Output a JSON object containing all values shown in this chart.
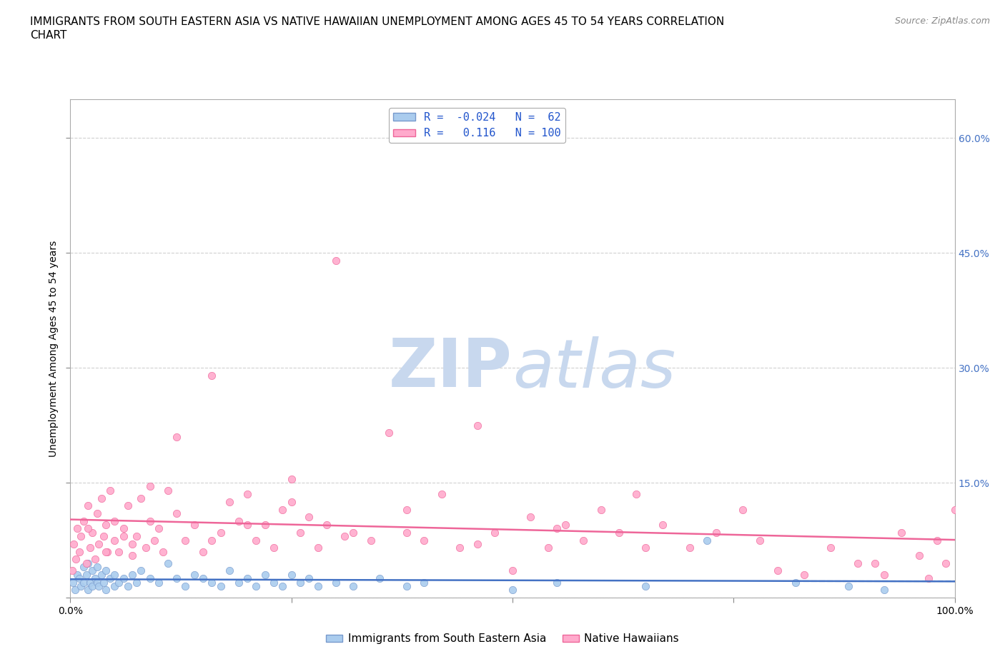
{
  "title_line1": "IMMIGRANTS FROM SOUTH EASTERN ASIA VS NATIVE HAWAIIAN UNEMPLOYMENT AMONG AGES 45 TO 54 YEARS CORRELATION",
  "title_line2": "CHART",
  "source_text": "Source: ZipAtlas.com",
  "ylabel": "Unemployment Among Ages 45 to 54 years",
  "xlim": [
    0.0,
    100.0
  ],
  "ylim": [
    0.0,
    65.0
  ],
  "background_color": "#ffffff",
  "grid_color": "#d0d0d0",
  "watermark_zip": "ZIP",
  "watermark_atlas": "atlas",
  "watermark_color_zip": "#c8d8ee",
  "watermark_color_atlas": "#c8d8ee",
  "right_ytick_color": "#4472c4",
  "series": [
    {
      "name": "Immigrants from South Eastern Asia",
      "color": "#aaccee",
      "edge_color": "#7799cc",
      "R": -0.024,
      "N": 62,
      "line_color": "#4472c4",
      "line_dash": false,
      "x": [
        0.3,
        0.5,
        0.8,
        1.0,
        1.2,
        1.5,
        1.5,
        1.8,
        2.0,
        2.0,
        2.2,
        2.5,
        2.5,
        2.8,
        3.0,
        3.0,
        3.2,
        3.5,
        3.8,
        4.0,
        4.0,
        4.5,
        5.0,
        5.0,
        5.5,
        6.0,
        6.5,
        7.0,
        7.5,
        8.0,
        9.0,
        10.0,
        11.0,
        12.0,
        13.0,
        14.0,
        15.0,
        16.0,
        17.0,
        18.0,
        19.0,
        20.0,
        21.0,
        22.0,
        23.0,
        24.0,
        25.0,
        26.0,
        27.0,
        28.0,
        30.0,
        32.0,
        35.0,
        38.0,
        40.0,
        50.0,
        55.0,
        65.0,
        72.0,
        82.0,
        88.0,
        92.0
      ],
      "y": [
        2.0,
        1.0,
        3.0,
        2.5,
        1.5,
        4.0,
        2.0,
        3.0,
        1.0,
        4.5,
        2.0,
        3.5,
        1.5,
        2.5,
        2.0,
        4.0,
        1.5,
        3.0,
        2.0,
        1.0,
        3.5,
        2.5,
        1.5,
        3.0,
        2.0,
        2.5,
        1.5,
        3.0,
        2.0,
        3.5,
        2.5,
        2.0,
        4.5,
        2.5,
        1.5,
        3.0,
        2.5,
        2.0,
        1.5,
        3.5,
        2.0,
        2.5,
        1.5,
        3.0,
        2.0,
        1.5,
        3.0,
        2.0,
        2.5,
        1.5,
        2.0,
        1.5,
        2.5,
        1.5,
        2.0,
        1.0,
        2.0,
        1.5,
        7.5,
        2.0,
        1.5,
        1.0
      ]
    },
    {
      "name": "Native Hawaiians",
      "color": "#ffaacc",
      "edge_color": "#ee6699",
      "R": 0.116,
      "N": 100,
      "line_color": "#ee6699",
      "line_dash": false,
      "x": [
        0.2,
        0.4,
        0.6,
        0.8,
        1.0,
        1.2,
        1.5,
        1.8,
        2.0,
        2.2,
        2.5,
        2.8,
        3.0,
        3.2,
        3.5,
        3.8,
        4.0,
        4.2,
        4.5,
        5.0,
        5.0,
        5.5,
        6.0,
        6.5,
        7.0,
        7.0,
        7.5,
        8.0,
        8.5,
        9.0,
        9.5,
        10.0,
        10.5,
        11.0,
        12.0,
        13.0,
        14.0,
        15.0,
        16.0,
        17.0,
        18.0,
        19.0,
        20.0,
        21.0,
        22.0,
        23.0,
        24.0,
        25.0,
        26.0,
        27.0,
        28.0,
        29.0,
        30.0,
        32.0,
        34.0,
        36.0,
        38.0,
        40.0,
        42.0,
        44.0,
        46.0,
        48.0,
        50.0,
        52.0,
        54.0,
        56.0,
        58.0,
        60.0,
        62.0,
        64.0,
        67.0,
        70.0,
        73.0,
        76.0,
        80.0,
        83.0,
        86.0,
        89.0,
        92.0,
        94.0,
        96.0,
        97.0,
        98.0,
        99.0,
        100.0,
        2.0,
        4.0,
        6.0,
        9.0,
        12.0,
        16.0,
        20.0,
        25.0,
        31.0,
        38.0,
        46.0,
        55.0,
        65.0,
        78.0,
        91.0
      ],
      "y": [
        3.5,
        7.0,
        5.0,
        9.0,
        6.0,
        8.0,
        10.0,
        4.5,
        12.0,
        6.5,
        8.5,
        5.0,
        11.0,
        7.0,
        13.0,
        8.0,
        9.5,
        6.0,
        14.0,
        7.5,
        10.0,
        6.0,
        9.0,
        12.0,
        7.0,
        5.5,
        8.0,
        13.0,
        6.5,
        10.0,
        7.5,
        9.0,
        6.0,
        14.0,
        11.0,
        7.5,
        9.5,
        6.0,
        29.0,
        8.5,
        12.5,
        10.0,
        13.5,
        7.5,
        9.5,
        6.5,
        11.5,
        15.5,
        8.5,
        10.5,
        6.5,
        9.5,
        44.0,
        8.5,
        7.5,
        21.5,
        11.5,
        7.5,
        13.5,
        6.5,
        22.5,
        8.5,
        3.5,
        10.5,
        6.5,
        9.5,
        7.5,
        11.5,
        8.5,
        13.5,
        9.5,
        6.5,
        8.5,
        11.5,
        3.5,
        3.0,
        6.5,
        4.5,
        3.0,
        8.5,
        5.5,
        2.5,
        7.5,
        4.5,
        11.5,
        9.0,
        6.0,
        8.0,
        14.5,
        21.0,
        7.5,
        9.5,
        12.5,
        8.0,
        8.5,
        7.0,
        9.0,
        6.5,
        7.5,
        4.5
      ]
    }
  ],
  "title_fontsize": 11,
  "axis_label_fontsize": 10,
  "tick_fontsize": 10,
  "legend_fontsize": 11,
  "source_fontsize": 9
}
